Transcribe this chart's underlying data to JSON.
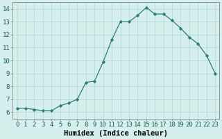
{
  "x": [
    0,
    1,
    2,
    3,
    4,
    5,
    6,
    7,
    8,
    9,
    10,
    11,
    12,
    13,
    14,
    15,
    16,
    17,
    18,
    19,
    20,
    21,
    22,
    23
  ],
  "y": [
    6.3,
    6.3,
    6.2,
    6.1,
    6.1,
    6.5,
    6.7,
    7.0,
    8.3,
    8.4,
    9.9,
    11.6,
    13.0,
    13.0,
    13.5,
    14.1,
    13.6,
    13.6,
    13.1,
    12.5,
    11.8,
    11.3,
    10.4,
    9.0
  ],
  "line_color": "#2d7f6e",
  "marker": "D",
  "marker_size": 2.2,
  "bg_color": "#d4efec",
  "grid_color": "#b8dbd8",
  "xlabel": "Humidex (Indice chaleur)",
  "xlim": [
    -0.5,
    23.5
  ],
  "ylim": [
    5.5,
    14.5
  ],
  "xticks": [
    0,
    1,
    2,
    3,
    4,
    5,
    6,
    7,
    8,
    9,
    10,
    11,
    12,
    13,
    14,
    15,
    16,
    17,
    18,
    19,
    20,
    21,
    22,
    23
  ],
  "yticks": [
    6,
    7,
    8,
    9,
    10,
    11,
    12,
    13,
    14
  ],
  "xlabel_fontsize": 7.5,
  "tick_fontsize": 6.5
}
